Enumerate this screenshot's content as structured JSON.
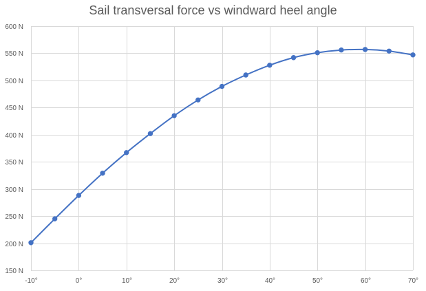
{
  "chart_data": {
    "type": "scatter",
    "title": "Sail transversal force vs windward heel angle",
    "xlabel": "",
    "ylabel": "",
    "xlim": [
      -10,
      70
    ],
    "ylim": [
      150,
      600
    ],
    "x_ticks": [
      -10,
      0,
      10,
      20,
      30,
      40,
      50,
      60,
      70
    ],
    "y_ticks": [
      150,
      200,
      250,
      300,
      350,
      400,
      450,
      500,
      550,
      600
    ],
    "x_tick_labels": [
      "-10°",
      "0°",
      "10°",
      "20°",
      "30°",
      "40°",
      "50°",
      "60°",
      "70°"
    ],
    "y_tick_labels": [
      "150 N",
      "200 N",
      "250 N",
      "300 N",
      "350 N",
      "400 N",
      "450 N",
      "500 N",
      "550 N",
      "600 N"
    ],
    "grid": true,
    "legend": "none",
    "smooth": true,
    "color": "#4472c4",
    "series": [
      {
        "x": [
          -10,
          -5,
          0,
          5,
          10,
          15,
          20,
          25,
          30,
          35,
          40,
          45,
          50,
          55,
          60,
          65,
          70
        ],
        "y": [
          201,
          245,
          288,
          329,
          367,
          402,
          435,
          464,
          489,
          510,
          528,
          542,
          551,
          556,
          557,
          554,
          547
        ]
      }
    ]
  }
}
